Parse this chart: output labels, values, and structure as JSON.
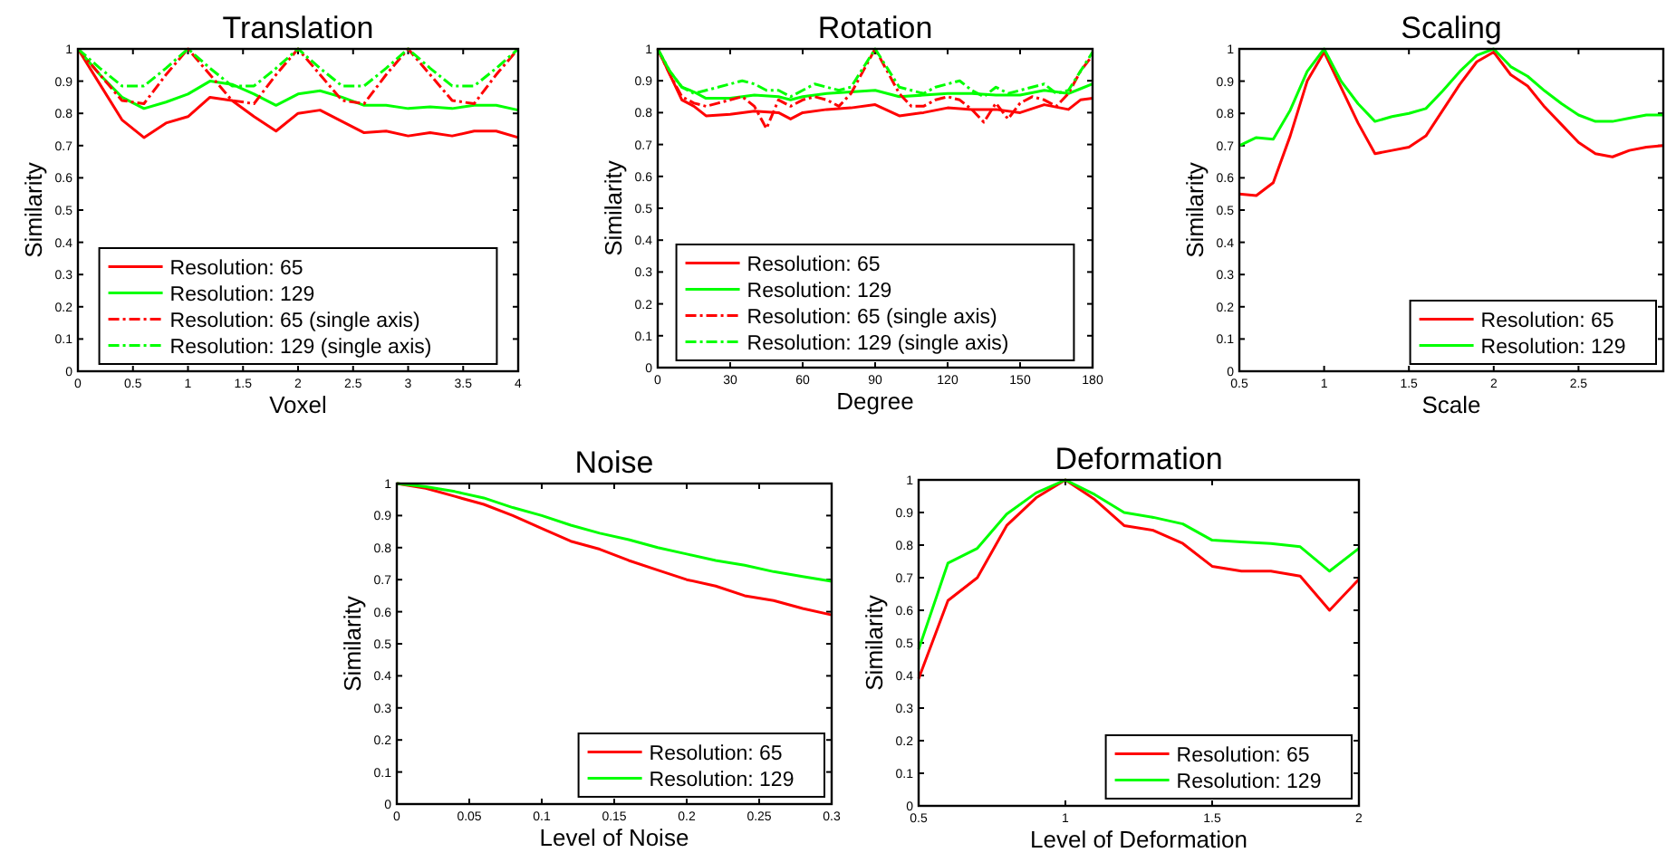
{
  "chart_data": [
    {
      "type": "line",
      "title": "Translation",
      "xlabel": "Voxel",
      "ylabel": "Similarity",
      "xlim": [
        0,
        4
      ],
      "xticks": [
        0,
        0.5,
        1,
        1.5,
        2,
        2.5,
        3,
        3.5,
        4
      ],
      "ylim": [
        0,
        1
      ],
      "yticks": [
        0,
        0.1,
        0.2,
        0.3,
        0.4,
        0.5,
        0.6,
        0.7,
        0.8,
        0.9,
        1
      ],
      "grid": false,
      "legend": "bottom",
      "x": [
        0,
        0.2,
        0.4,
        0.6,
        0.8,
        1,
        1.2,
        1.4,
        1.6,
        1.8,
        2,
        2.2,
        2.4,
        2.6,
        2.8,
        3,
        3.2,
        3.4,
        3.6,
        3.8,
        4
      ],
      "series": [
        {
          "name": "Resolution: 65",
          "color": "#ff0000",
          "line_style": "solid",
          "values": [
            1,
            0.89,
            0.78,
            0.725,
            0.77,
            0.79,
            0.85,
            0.84,
            0.79,
            0.745,
            0.8,
            0.81,
            0.775,
            0.74,
            0.745,
            0.73,
            0.74,
            0.73,
            0.745,
            0.745,
            0.725
          ]
        },
        {
          "name": "Resolution: 129",
          "color": "#00ff00",
          "line_style": "solid",
          "values": [
            1,
            0.92,
            0.85,
            0.815,
            0.835,
            0.86,
            0.9,
            0.89,
            0.86,
            0.825,
            0.86,
            0.87,
            0.85,
            0.825,
            0.825,
            0.815,
            0.82,
            0.815,
            0.825,
            0.825,
            0.81
          ]
        },
        {
          "name": "Resolution: 65 (single axis)",
          "color": "#ff0000",
          "line_style": "dashed",
          "values": [
            1,
            0.92,
            0.84,
            0.83,
            0.92,
            1,
            0.92,
            0.84,
            0.83,
            0.92,
            1,
            0.92,
            0.84,
            0.83,
            0.92,
            1,
            0.92,
            0.84,
            0.83,
            0.92,
            1
          ]
        },
        {
          "name": "Resolution: 129 (single axis)",
          "color": "#00ff00",
          "line_style": "dashed",
          "values": [
            1,
            0.94,
            0.885,
            0.885,
            0.94,
            1,
            0.94,
            0.885,
            0.885,
            0.94,
            1,
            0.94,
            0.885,
            0.885,
            0.94,
            1,
            0.94,
            0.885,
            0.885,
            0.94,
            1
          ]
        }
      ]
    },
    {
      "type": "line",
      "title": "Rotation",
      "xlabel": "Degree",
      "ylabel": "Similarity",
      "xlim": [
        0,
        180
      ],
      "xticks": [
        0,
        30,
        60,
        90,
        120,
        150,
        180
      ],
      "ylim": [
        0,
        1
      ],
      "yticks": [
        0,
        0.1,
        0.2,
        0.3,
        0.4,
        0.5,
        0.6,
        0.7,
        0.8,
        0.9,
        1
      ],
      "grid": false,
      "legend": "bottom",
      "series": [
        {
          "name": "Resolution: 65",
          "color": "#ff0000",
          "line_style": "solid",
          "x": [
            0,
            5,
            10,
            15,
            20,
            30,
            40,
            50,
            55,
            60,
            70,
            80,
            90,
            100,
            110,
            120,
            130,
            140,
            150,
            160,
            170,
            175,
            180
          ],
          "values": [
            1,
            0.92,
            0.84,
            0.82,
            0.79,
            0.795,
            0.805,
            0.8,
            0.78,
            0.8,
            0.81,
            0.815,
            0.825,
            0.79,
            0.8,
            0.815,
            0.81,
            0.81,
            0.8,
            0.825,
            0.81,
            0.84,
            0.845
          ]
        },
        {
          "name": "Resolution: 129",
          "color": "#00ff00",
          "line_style": "solid",
          "x": [
            0,
            5,
            10,
            15,
            20,
            30,
            40,
            50,
            55,
            60,
            70,
            80,
            90,
            100,
            110,
            120,
            130,
            140,
            150,
            160,
            170,
            175,
            180
          ],
          "values": [
            1,
            0.93,
            0.88,
            0.865,
            0.845,
            0.845,
            0.855,
            0.85,
            0.84,
            0.85,
            0.86,
            0.865,
            0.87,
            0.85,
            0.855,
            0.86,
            0.86,
            0.855,
            0.855,
            0.87,
            0.86,
            0.875,
            0.89
          ]
        },
        {
          "name": "Resolution: 65 (single axis)",
          "color": "#ff0000",
          "line_style": "dashed",
          "x": [
            0,
            5,
            10,
            15,
            20,
            25,
            30,
            35,
            40,
            45,
            50,
            55,
            60,
            65,
            70,
            75,
            80,
            85,
            90,
            95,
            100,
            105,
            110,
            115,
            120,
            125,
            130,
            135,
            140,
            145,
            150,
            155,
            160,
            165,
            170,
            175,
            180
          ],
          "values": [
            1,
            0.92,
            0.85,
            0.83,
            0.82,
            0.83,
            0.84,
            0.85,
            0.82,
            0.75,
            0.84,
            0.82,
            0.84,
            0.85,
            0.84,
            0.82,
            0.86,
            0.93,
            1,
            0.93,
            0.86,
            0.82,
            0.82,
            0.84,
            0.85,
            0.84,
            0.81,
            0.77,
            0.83,
            0.78,
            0.83,
            0.85,
            0.84,
            0.82,
            0.86,
            0.93,
            0.98
          ]
        },
        {
          "name": "Resolution: 129 (single axis)",
          "color": "#00ff00",
          "line_style": "dashed",
          "x": [
            0,
            5,
            10,
            15,
            20,
            25,
            30,
            35,
            40,
            45,
            50,
            55,
            60,
            65,
            70,
            75,
            80,
            85,
            90,
            95,
            100,
            105,
            110,
            115,
            120,
            125,
            130,
            135,
            140,
            145,
            150,
            155,
            160,
            165,
            170,
            175,
            180
          ],
          "values": [
            1,
            0.93,
            0.88,
            0.86,
            0.87,
            0.88,
            0.89,
            0.9,
            0.89,
            0.87,
            0.87,
            0.85,
            0.87,
            0.89,
            0.88,
            0.87,
            0.88,
            0.94,
            1,
            0.94,
            0.88,
            0.87,
            0.86,
            0.88,
            0.89,
            0.9,
            0.87,
            0.85,
            0.88,
            0.86,
            0.87,
            0.88,
            0.89,
            0.86,
            0.87,
            0.93,
            0.99
          ]
        }
      ]
    },
    {
      "type": "line",
      "title": "Scaling",
      "xlabel": "Scale",
      "ylabel": "Similarity",
      "xlim": [
        0.5,
        3
      ],
      "xticks": [
        0.5,
        1,
        1.5,
        2,
        2.5
      ],
      "ylim": [
        0,
        1
      ],
      "yticks": [
        0,
        0.1,
        0.2,
        0.3,
        0.4,
        0.5,
        0.6,
        0.7,
        0.8,
        0.9,
        1
      ],
      "grid": false,
      "legend": "bottom right",
      "x": [
        0.5,
        0.6,
        0.7,
        0.8,
        0.9,
        1,
        1.1,
        1.2,
        1.3,
        1.4,
        1.5,
        1.6,
        1.7,
        1.8,
        1.9,
        2,
        2.1,
        2.2,
        2.3,
        2.4,
        2.5,
        2.6,
        2.7,
        2.8,
        2.9,
        3
      ],
      "series": [
        {
          "name": "Resolution: 65",
          "color": "#ff0000",
          "line_style": "solid",
          "values": [
            0.55,
            0.545,
            0.585,
            0.73,
            0.9,
            0.99,
            0.88,
            0.77,
            0.675,
            0.685,
            0.695,
            0.73,
            0.81,
            0.89,
            0.96,
            0.99,
            0.92,
            0.885,
            0.82,
            0.765,
            0.71,
            0.675,
            0.665,
            0.685,
            0.695,
            0.7
          ]
        },
        {
          "name": "Resolution: 129",
          "color": "#00ff00",
          "line_style": "solid",
          "values": [
            0.7,
            0.725,
            0.72,
            0.81,
            0.93,
            1,
            0.9,
            0.83,
            0.775,
            0.79,
            0.8,
            0.815,
            0.87,
            0.93,
            0.98,
            1,
            0.945,
            0.915,
            0.87,
            0.83,
            0.795,
            0.775,
            0.775,
            0.785,
            0.795,
            0.795
          ]
        }
      ]
    },
    {
      "type": "line",
      "title": "Noise",
      "xlabel": "Level of Noise",
      "ylabel": "Similarity",
      "xlim": [
        0,
        0.3
      ],
      "xticks": [
        0,
        0.05,
        0.1,
        0.15,
        0.2,
        0.25,
        0.3
      ],
      "ylim": [
        0,
        1
      ],
      "yticks": [
        0,
        0.1,
        0.2,
        0.3,
        0.4,
        0.5,
        0.6,
        0.7,
        0.8,
        0.9,
        1
      ],
      "grid": false,
      "legend": "bottom right",
      "x": [
        0,
        0.02,
        0.04,
        0.06,
        0.08,
        0.1,
        0.12,
        0.14,
        0.16,
        0.18,
        0.2,
        0.22,
        0.24,
        0.26,
        0.28,
        0.3
      ],
      "series": [
        {
          "name": "Resolution: 65",
          "color": "#ff0000",
          "line_style": "solid",
          "values": [
            1,
            0.985,
            0.96,
            0.935,
            0.9,
            0.86,
            0.82,
            0.795,
            0.76,
            0.73,
            0.7,
            0.68,
            0.65,
            0.635,
            0.61,
            0.59
          ]
        },
        {
          "name": "Resolution: 129",
          "color": "#00ff00",
          "line_style": "solid",
          "values": [
            1,
            0.99,
            0.975,
            0.955,
            0.925,
            0.9,
            0.87,
            0.845,
            0.825,
            0.8,
            0.78,
            0.76,
            0.745,
            0.725,
            0.71,
            0.695
          ]
        }
      ]
    },
    {
      "type": "line",
      "title": "Deformation",
      "xlabel": "Level of Deformation",
      "ylabel": "Similarity",
      "xlim": [
        0.5,
        2
      ],
      "xticks": [
        0.5,
        1,
        1.5,
        2
      ],
      "ylim": [
        0,
        1
      ],
      "yticks": [
        0,
        0.1,
        0.2,
        0.3,
        0.4,
        0.5,
        0.6,
        0.7,
        0.8,
        0.9,
        1
      ],
      "grid": false,
      "legend": "bottom right",
      "x": [
        0.5,
        0.6,
        0.7,
        0.8,
        0.9,
        1,
        1.1,
        1.2,
        1.3,
        1.4,
        1.5,
        1.6,
        1.7,
        1.8,
        1.9,
        2
      ],
      "series": [
        {
          "name": "Resolution: 65",
          "color": "#ff0000",
          "line_style": "solid",
          "values": [
            0.39,
            0.63,
            0.7,
            0.86,
            0.945,
            1,
            0.94,
            0.86,
            0.845,
            0.805,
            0.735,
            0.72,
            0.72,
            0.705,
            0.6,
            0.695
          ]
        },
        {
          "name": "Resolution: 129",
          "color": "#00ff00",
          "line_style": "solid",
          "values": [
            0.48,
            0.745,
            0.79,
            0.895,
            0.96,
            1,
            0.955,
            0.9,
            0.885,
            0.865,
            0.815,
            0.81,
            0.805,
            0.795,
            0.72,
            0.79
          ]
        }
      ]
    }
  ]
}
